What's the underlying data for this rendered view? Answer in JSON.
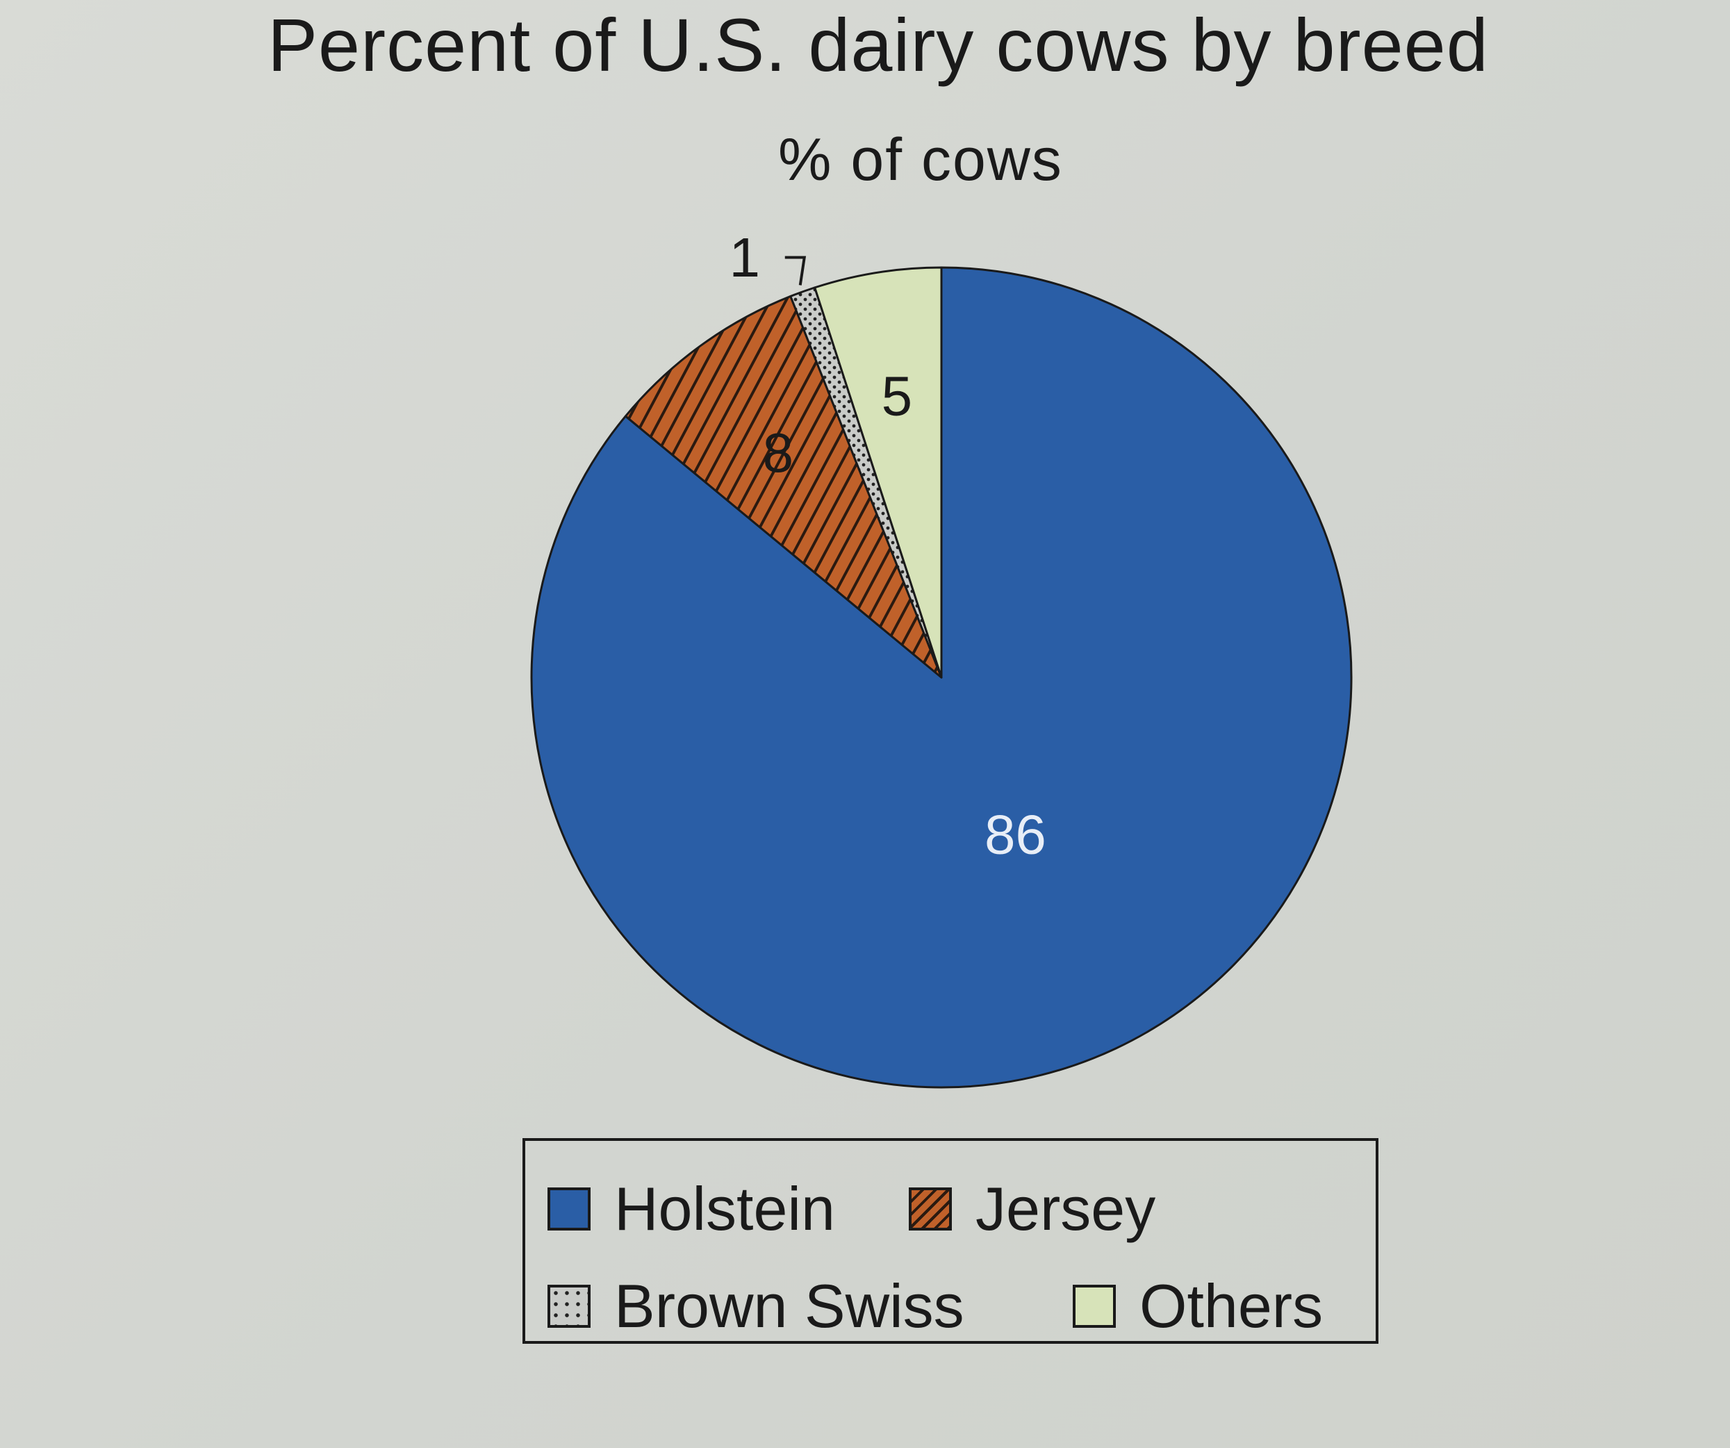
{
  "chart_data": {
    "type": "pie",
    "title": "Percent of U.S. dairy cows by breed",
    "subtitle": "% of cows",
    "slices": [
      {
        "label": "Holstein",
        "value": 86,
        "color": "#2a5ea6",
        "data_label": "86"
      },
      {
        "label": "Jersey",
        "value": 8,
        "color": "#c0612a",
        "data_label": "8"
      },
      {
        "label": "Brown Swiss",
        "value": 1,
        "color": "#c9cbc8",
        "data_label": "1"
      },
      {
        "label": "Others",
        "value": 5,
        "color": "#d7e3b9",
        "data_label": "5"
      }
    ],
    "legend": {
      "placement": "bottom",
      "entries": [
        "Holstein",
        "Jersey",
        "Brown Swiss",
        "Others"
      ]
    }
  }
}
